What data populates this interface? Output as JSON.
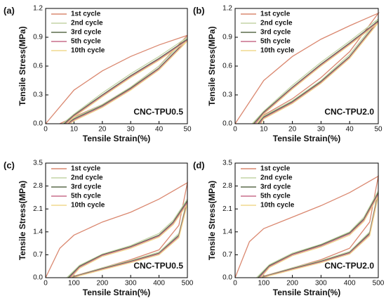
{
  "chart_data": [
    {
      "type": "line",
      "panel_label": "(a)",
      "annotation": "CNC-TPU0.5",
      "annotation_color": "#3ab4d8",
      "x_label": "Tensile Strain(%)",
      "y_label": "Tensile Stress(MPa)",
      "xlim": [
        0,
        50
      ],
      "xticks": [
        0,
        10,
        20,
        30,
        40,
        50
      ],
      "ylim": [
        0,
        1.2
      ],
      "yticks": [
        {
          "value": 0,
          "label": "0.0"
        },
        0.3,
        0.6,
        0.9,
        {
          "value": 1.2,
          "label": "1.2"
        }
      ],
      "legend": "top-left",
      "series": [
        {
          "name": "1st cycle",
          "color": "#da8870",
          "x": [
            0,
            10,
            20,
            30,
            40,
            50,
            40,
            30,
            20,
            10,
            5
          ],
          "values": [
            0,
            0.35,
            0.55,
            0.7,
            0.82,
            0.92,
            0.6,
            0.38,
            0.2,
            0.07,
            0
          ]
        },
        {
          "name": "2nd cycle",
          "color": "#c4d3a6",
          "x": [
            6,
            10,
            20,
            30,
            40,
            50,
            40,
            30,
            20,
            10,
            7
          ],
          "values": [
            0,
            0.1,
            0.32,
            0.52,
            0.7,
            0.9,
            0.6,
            0.38,
            0.2,
            0.06,
            0
          ]
        },
        {
          "name": "3rd cycle",
          "color": "#5c6b4c",
          "x": [
            6.5,
            10,
            20,
            30,
            40,
            50,
            40,
            30,
            20,
            10,
            7.5
          ],
          "values": [
            0,
            0.09,
            0.3,
            0.5,
            0.68,
            0.88,
            0.58,
            0.37,
            0.19,
            0.05,
            0
          ]
        },
        {
          "name": "5th cycle",
          "color": "#c96e8c",
          "x": [
            7,
            10,
            20,
            30,
            40,
            50,
            40,
            30,
            20,
            10,
            8
          ],
          "values": [
            0,
            0.08,
            0.29,
            0.49,
            0.67,
            0.87,
            0.57,
            0.36,
            0.18,
            0.04,
            0
          ]
        },
        {
          "name": "10th cycle",
          "color": "#f0d98e",
          "x": [
            7.5,
            10,
            20,
            30,
            40,
            50,
            40,
            30,
            20,
            10,
            8.5
          ],
          "values": [
            0,
            0.07,
            0.28,
            0.48,
            0.66,
            0.86,
            0.56,
            0.35,
            0.17,
            0.03,
            0
          ]
        }
      ]
    },
    {
      "type": "line",
      "panel_label": "(b)",
      "annotation": "CNC-TPU2.0",
      "annotation_color": "#262a6a",
      "x_label": "Tensile Strain(%)",
      "y_label": "Tensile Stress(MPa)",
      "xlim": [
        0,
        50
      ],
      "xticks": [
        0,
        10,
        20,
        30,
        40,
        50
      ],
      "ylim": [
        0,
        1.2
      ],
      "yticks": [
        {
          "value": 0,
          "label": "0.0"
        },
        0.3,
        0.6,
        0.9,
        {
          "value": 1.2,
          "label": "1.2"
        }
      ],
      "legend": "top-left",
      "series": [
        {
          "name": "1st cycle",
          "color": "#da8870",
          "x": [
            0,
            10,
            20,
            30,
            40,
            50,
            40,
            30,
            20,
            10,
            6
          ],
          "values": [
            0,
            0.45,
            0.7,
            0.88,
            1.02,
            1.15,
            0.75,
            0.48,
            0.26,
            0.09,
            0
          ]
        },
        {
          "name": "2nd cycle",
          "color": "#c4d3a6",
          "x": [
            6,
            10,
            20,
            30,
            40,
            50,
            40,
            30,
            20,
            10,
            7.5
          ],
          "values": [
            0,
            0.13,
            0.4,
            0.64,
            0.86,
            1.09,
            0.72,
            0.45,
            0.24,
            0.08,
            0
          ]
        },
        {
          "name": "3rd cycle",
          "color": "#5c6b4c",
          "x": [
            6.5,
            10,
            20,
            30,
            40,
            50,
            40,
            30,
            20,
            10,
            8
          ],
          "values": [
            0,
            0.12,
            0.38,
            0.62,
            0.84,
            1.07,
            0.7,
            0.44,
            0.23,
            0.07,
            0
          ]
        },
        {
          "name": "5th cycle",
          "color": "#c96e8c",
          "x": [
            7,
            10,
            20,
            30,
            40,
            50,
            40,
            30,
            20,
            10,
            8.5
          ],
          "values": [
            0,
            0.11,
            0.37,
            0.61,
            0.83,
            1.06,
            0.69,
            0.43,
            0.22,
            0.06,
            0
          ]
        },
        {
          "name": "10th cycle",
          "color": "#f0d98e",
          "x": [
            7.5,
            10,
            20,
            30,
            40,
            50,
            40,
            30,
            20,
            10,
            9
          ],
          "values": [
            0,
            0.1,
            0.36,
            0.6,
            0.82,
            1.05,
            0.68,
            0.42,
            0.21,
            0.05,
            0
          ]
        }
      ]
    },
    {
      "type": "line",
      "panel_label": "(c)",
      "annotation": "CNC-TPU0.5",
      "annotation_color": "#3ab4d8",
      "x_label": "Tensile Strain(%)",
      "y_label": "Tensile Stress(MPa)",
      "xlim": [
        0,
        500
      ],
      "xticks": [
        0,
        100,
        200,
        300,
        400,
        500
      ],
      "ylim": [
        0,
        3.5
      ],
      "yticks": [
        {
          "value": 0,
          "label": "0.0"
        },
        0.7,
        1.4,
        2.1,
        2.8,
        3.5
      ],
      "legend": "top-left",
      "series": [
        {
          "name": "1st cycle",
          "color": "#da8870",
          "x": [
            0,
            50,
            100,
            200,
            300,
            400,
            500,
            470,
            400,
            300,
            200,
            120,
            80
          ],
          "values": [
            0,
            0.9,
            1.3,
            1.7,
            2.0,
            2.4,
            2.9,
            1.6,
            0.85,
            0.55,
            0.3,
            0.1,
            0
          ]
        },
        {
          "name": "2nd cycle",
          "color": "#c4d3a6",
          "x": [
            75,
            120,
            200,
            300,
            400,
            450,
            500,
            470,
            400,
            300,
            200,
            120,
            85
          ],
          "values": [
            0,
            0.38,
            0.72,
            0.98,
            1.35,
            1.75,
            2.4,
            1.35,
            0.78,
            0.52,
            0.3,
            0.09,
            0
          ]
        },
        {
          "name": "3rd cycle",
          "color": "#5c6b4c",
          "x": [
            80,
            120,
            200,
            300,
            400,
            450,
            500,
            470,
            400,
            300,
            200,
            120,
            90
          ],
          "values": [
            0,
            0.35,
            0.7,
            0.95,
            1.3,
            1.7,
            2.35,
            1.3,
            0.75,
            0.5,
            0.28,
            0.08,
            0
          ]
        },
        {
          "name": "5th cycle",
          "color": "#c96e8c",
          "x": [
            85,
            120,
            200,
            300,
            400,
            450,
            500,
            470,
            400,
            300,
            200,
            120,
            95
          ],
          "values": [
            0,
            0.32,
            0.68,
            0.93,
            1.27,
            1.66,
            2.3,
            1.26,
            0.73,
            0.48,
            0.26,
            0.07,
            0
          ]
        },
        {
          "name": "10th cycle",
          "color": "#f0d98e",
          "x": [
            90,
            120,
            200,
            300,
            400,
            450,
            500,
            470,
            400,
            300,
            200,
            120,
            100
          ],
          "values": [
            0,
            0.29,
            0.65,
            0.9,
            1.24,
            1.62,
            2.25,
            1.22,
            0.7,
            0.46,
            0.24,
            0.06,
            0
          ]
        }
      ]
    },
    {
      "type": "line",
      "panel_label": "(d)",
      "annotation": "CNC-TPU2.0",
      "annotation_color": "#262a6a",
      "x_label": "Tensile Strain(%)",
      "y_label": "Tensile Stress(MPa)",
      "xlim": [
        0,
        500
      ],
      "xticks": [
        0,
        100,
        200,
        300,
        400,
        500
      ],
      "ylim": [
        0,
        3.5
      ],
      "yticks": [
        {
          "value": 0,
          "label": "0.0"
        },
        0.7,
        1.4,
        2.1,
        2.8,
        3.5
      ],
      "legend": "top-left",
      "series": [
        {
          "name": "1st cycle",
          "color": "#da8870",
          "x": [
            0,
            50,
            100,
            200,
            300,
            400,
            500,
            470,
            400,
            300,
            200,
            120,
            80
          ],
          "values": [
            0,
            1.1,
            1.5,
            1.85,
            2.2,
            2.6,
            3.1,
            1.7,
            0.9,
            0.55,
            0.3,
            0.1,
            0
          ]
        },
        {
          "name": "2nd cycle",
          "color": "#c4d3a6",
          "x": [
            75,
            120,
            200,
            300,
            400,
            450,
            500,
            470,
            400,
            300,
            200,
            120,
            85
          ],
          "values": [
            0,
            0.4,
            0.75,
            1.02,
            1.4,
            1.85,
            2.65,
            1.4,
            0.8,
            0.52,
            0.3,
            0.09,
            0
          ]
        },
        {
          "name": "3rd cycle",
          "color": "#5c6b4c",
          "x": [
            80,
            120,
            200,
            300,
            400,
            450,
            500,
            470,
            400,
            300,
            200,
            120,
            90
          ],
          "values": [
            0,
            0.37,
            0.72,
            1.0,
            1.37,
            1.8,
            2.6,
            1.36,
            0.77,
            0.5,
            0.28,
            0.08,
            0
          ]
        },
        {
          "name": "5th cycle",
          "color": "#c96e8c",
          "x": [
            85,
            120,
            200,
            300,
            400,
            450,
            500,
            470,
            400,
            300,
            200,
            120,
            95
          ],
          "values": [
            0,
            0.34,
            0.7,
            0.97,
            1.34,
            1.76,
            2.55,
            1.32,
            0.75,
            0.48,
            0.26,
            0.07,
            0
          ]
        },
        {
          "name": "10th cycle",
          "color": "#f0d98e",
          "x": [
            90,
            120,
            200,
            300,
            400,
            450,
            500,
            470,
            400,
            300,
            200,
            120,
            100
          ],
          "values": [
            0,
            0.31,
            0.67,
            0.94,
            1.3,
            1.72,
            2.5,
            1.28,
            0.72,
            0.46,
            0.24,
            0.06,
            0
          ]
        }
      ]
    }
  ]
}
